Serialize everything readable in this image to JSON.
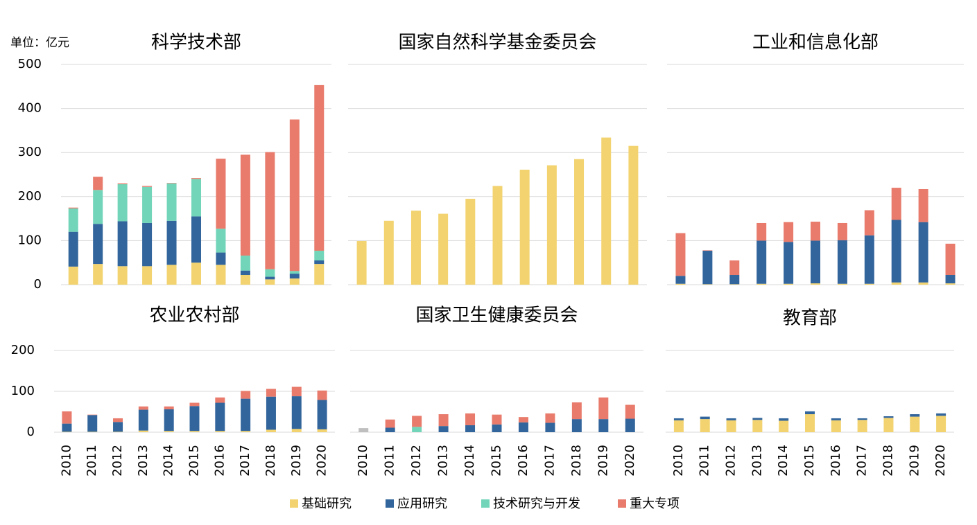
{
  "chart_data": [
    {
      "type": "stacked_bar",
      "title": "科学技术部",
      "unit": "单位：亿元",
      "categories": [
        "2010",
        "2011",
        "2012",
        "2013",
        "2014",
        "2015",
        "2016",
        "2017",
        "2018",
        "2019",
        "2020"
      ],
      "ylim": [
        0,
        500
      ],
      "yticks": [
        0,
        100,
        200,
        300,
        400,
        500
      ],
      "grid": true,
      "series": [
        {
          "name": "基础研究",
          "color": "#f2d36f",
          "values": [
            41,
            47,
            42,
            42,
            45,
            50,
            45,
            22,
            12,
            14,
            47
          ]
        },
        {
          "name": "应用研究",
          "color": "#32659c",
          "values": [
            79,
            91,
            102,
            98,
            100,
            105,
            28,
            10,
            6,
            11,
            8
          ]
        },
        {
          "name": "技术研究与开发",
          "color": "#72d5b9",
          "values": [
            53,
            77,
            84,
            82,
            85,
            85,
            54,
            34,
            17,
            6,
            22
          ]
        },
        {
          "name": "重大专项",
          "color": "#e87b6c",
          "values": [
            2,
            30,
            2,
            2,
            1,
            2,
            159,
            229,
            266,
            344,
            376
          ]
        }
      ]
    },
    {
      "type": "stacked_bar",
      "title": "国家自然科学基金委员会",
      "categories": [
        "2010",
        "2011",
        "2012",
        "2013",
        "2014",
        "2015",
        "2016",
        "2017",
        "2018",
        "2019",
        "2020"
      ],
      "ylim": [
        0,
        500
      ],
      "yticks": [
        0,
        100,
        200,
        300,
        400,
        500
      ],
      "grid": true,
      "series": [
        {
          "name": "基础研究",
          "color": "#f2d36f",
          "values": [
            99,
            145,
            168,
            161,
            195,
            224,
            261,
            271,
            285,
            334,
            315
          ]
        }
      ]
    },
    {
      "type": "stacked_bar",
      "title": "工业和信息化部",
      "categories": [
        "2010",
        "2011",
        "2012",
        "2013",
        "2014",
        "2015",
        "2016",
        "2017",
        "2018",
        "2019",
        "2020"
      ],
      "ylim": [
        0,
        500
      ],
      "yticks": [
        0,
        100,
        200,
        300,
        400,
        500
      ],
      "grid": true,
      "series": [
        {
          "name": "基础研究",
          "color": "#f2d36f",
          "values": [
            2,
            1,
            1,
            2,
            2,
            3,
            2,
            2,
            5,
            5,
            3
          ]
        },
        {
          "name": "应用研究",
          "color": "#32659c",
          "values": [
            18,
            76,
            21,
            98,
            95,
            97,
            99,
            110,
            142,
            137,
            19
          ]
        },
        {
          "name": "重大专项",
          "color": "#e87b6c",
          "values": [
            97,
            1,
            33,
            40,
            45,
            43,
            39,
            57,
            73,
            75,
            71
          ]
        }
      ]
    },
    {
      "type": "stacked_bar",
      "title": "农业农村部",
      "categories": [
        "2010",
        "2011",
        "2012",
        "2013",
        "2014",
        "2015",
        "2016",
        "2017",
        "2018",
        "2019",
        "2020"
      ],
      "ylim": [
        0,
        200
      ],
      "yticks": [
        0,
        100,
        200
      ],
      "grid": true,
      "series": [
        {
          "name": "基础研究",
          "color": "#f2d36f",
          "values": [
            1,
            1,
            1,
            4,
            3,
            3,
            3,
            3,
            6,
            8,
            7
          ]
        },
        {
          "name": "应用研究",
          "color": "#32659c",
          "values": [
            20,
            41,
            24,
            51,
            53,
            61,
            69,
            79,
            81,
            80,
            72
          ]
        },
        {
          "name": "重大专项",
          "color": "#e87b6c",
          "values": [
            30,
            1,
            9,
            8,
            7,
            8,
            13,
            19,
            19,
            23,
            23
          ]
        }
      ]
    },
    {
      "type": "stacked_bar",
      "title": "国家卫生健康委员会",
      "categories": [
        "2010",
        "2011",
        "2012",
        "2013",
        "2014",
        "2015",
        "2016",
        "2017",
        "2018",
        "2019",
        "2020"
      ],
      "ylim": [
        0,
        200
      ],
      "yticks": [
        0,
        100,
        200
      ],
      "grid": true,
      "series": [
        {
          "name": "基础研究",
          "color": "#f2d36f",
          "point_colors": {
            "0": "#bfbfbf"
          },
          "values": [
            10,
            0,
            0,
            0,
            0,
            0,
            0,
            0,
            0,
            0,
            0
          ]
        },
        {
          "name": "应用研究",
          "color": "#32659c",
          "values": [
            0,
            11,
            0,
            15,
            17,
            19,
            24,
            23,
            32,
            32,
            33
          ]
        },
        {
          "name": "技术研究与开发",
          "color": "#72d5b9",
          "values": [
            0,
            0,
            13,
            0,
            0,
            0,
            0,
            0,
            0,
            0,
            0
          ]
        },
        {
          "name": "重大专项",
          "color": "#e87b6c",
          "values": [
            0,
            20,
            27,
            29,
            29,
            24,
            13,
            23,
            41,
            53,
            34
          ]
        }
      ]
    },
    {
      "type": "stacked_bar",
      "title": "教育部",
      "categories": [
        "2010",
        "2011",
        "2012",
        "2013",
        "2014",
        "2015",
        "2016",
        "2017",
        "2018",
        "2019",
        "2020"
      ],
      "ylim": [
        0,
        200
      ],
      "yticks": [
        0,
        100,
        200
      ],
      "grid": true,
      "series": [
        {
          "name": "基础研究",
          "color": "#f2d36f",
          "values": [
            29,
            32,
            29,
            30,
            28,
            44,
            29,
            30,
            35,
            38,
            40
          ]
        },
        {
          "name": "应用研究",
          "color": "#32659c",
          "values": [
            5,
            6,
            5,
            5,
            6,
            7,
            5,
            4,
            4,
            6,
            6
          ]
        }
      ]
    }
  ]
}
